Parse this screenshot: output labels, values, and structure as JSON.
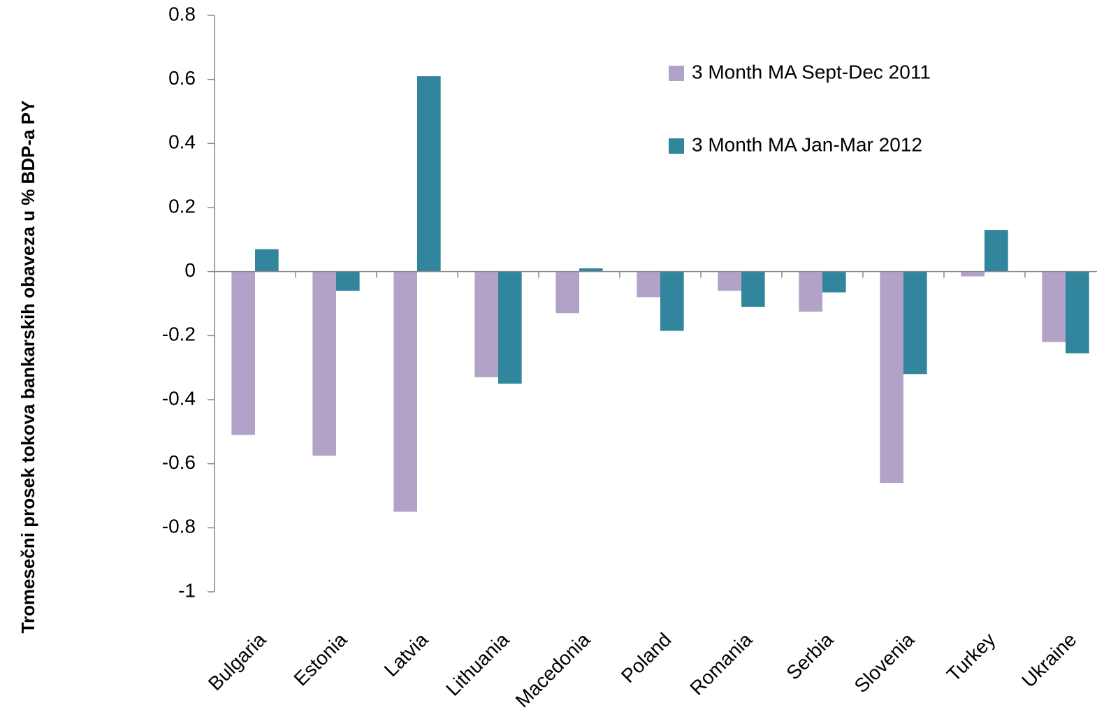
{
  "chart_data": {
    "type": "bar",
    "y_label": "Tromesečni prosek tokova bankarskih obaveza u % BDP-a PY",
    "categories": [
      "Bulgaria",
      "Estonia",
      "Latvia",
      "Lithuania",
      "Macedonia",
      "Poland",
      "Romania",
      "Serbia",
      "Slovenia",
      "Turkey",
      "Ukraine"
    ],
    "series": [
      {
        "name": "3 Month MA Sept-Dec 2011",
        "color": "#b3a2c8",
        "values": [
          -0.51,
          -0.575,
          -0.75,
          -0.33,
          -0.13,
          -0.08,
          -0.06,
          -0.125,
          -0.66,
          -0.015,
          -0.22
        ]
      },
      {
        "name": "3 Month MA Jan-Mar 2012",
        "color": "#31859c",
        "values": [
          0.07,
          -0.06,
          0.61,
          -0.35,
          0.01,
          -0.185,
          -0.11,
          -0.065,
          -0.32,
          0.13,
          -0.255
        ]
      }
    ],
    "ylim": [
      -1,
      0.8
    ],
    "yticks": [
      -1,
      -0.8,
      -0.6,
      -0.4,
      -0.2,
      0,
      0.2,
      0.4,
      0.6,
      0.8
    ],
    "grid": false,
    "legend": "top-right"
  }
}
